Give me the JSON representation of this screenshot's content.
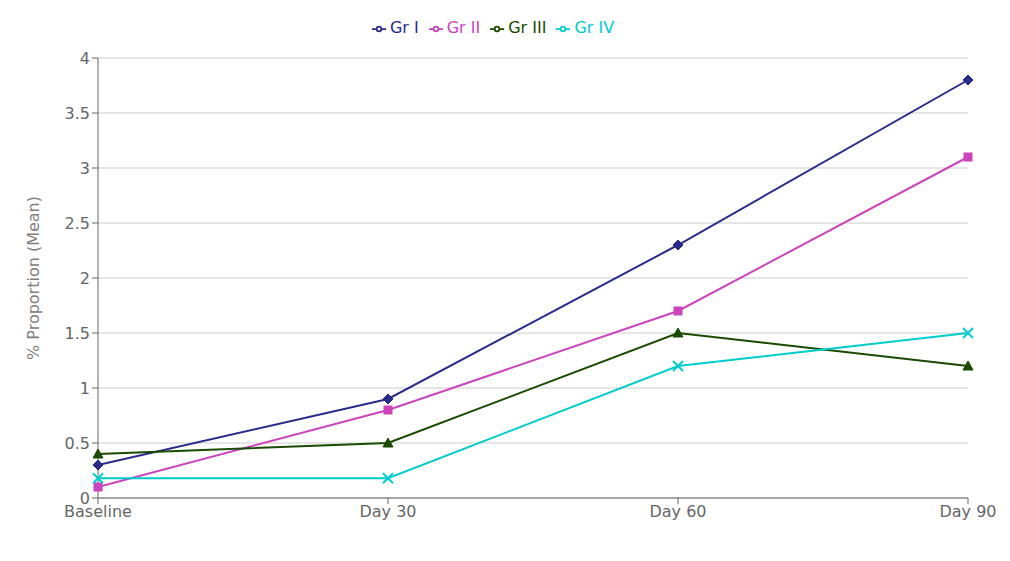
{
  "chart_data": {
    "type": "line",
    "categories": [
      "Baseline",
      "Day 30",
      "Day 60",
      "Day 90"
    ],
    "series": [
      {
        "name": "Gr I",
        "color": "#2B2B8C",
        "marker": "diamond",
        "values": [
          0.3,
          0.9,
          2.3,
          3.8
        ]
      },
      {
        "name": "Gr II",
        "color": "#CC44BB",
        "marker": "square",
        "values": [
          0.1,
          0.8,
          1.7,
          3.1
        ]
      },
      {
        "name": "Gr III",
        "color": "#1A4A00",
        "marker": "triangle",
        "values": [
          0.4,
          0.5,
          1.5,
          1.2
        ]
      },
      {
        "name": "Gr IV",
        "color": "#00CCCC",
        "marker": "x",
        "values": [
          0.18,
          0.18,
          1.2,
          1.5
        ]
      }
    ],
    "ylabel": "% Proportion (Mean)",
    "ylim": [
      0,
      4.0
    ],
    "yticks": [
      0,
      0.5,
      1,
      1.5,
      2,
      2.5,
      3,
      3.5,
      4
    ],
    "grid": true,
    "legend": "top"
  }
}
